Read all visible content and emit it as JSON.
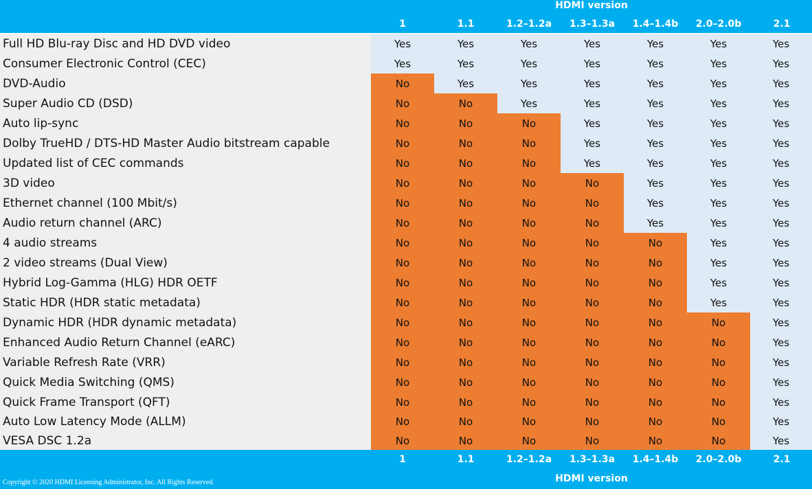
{
  "header": {
    "title": "HDMI version"
  },
  "footer": {
    "title": "HDMI version",
    "copyright": "Copyright © 2020 HDMI Licensing Administrator, Inc.  All Rights Reserved."
  },
  "versions": [
    "1",
    "1.1",
    "1.2–1.2a",
    "1.3–1.3a",
    "1.4–1.4b",
    "2.0–2.0b",
    "2.1"
  ],
  "colors": {
    "band": "#00aeef",
    "yes": "#deebf7",
    "no": "#ed7d31",
    "feature_bg": "#efefef"
  },
  "rows": [
    {
      "feature": "Full HD Blu-ray Disc and HD DVD video",
      "values": [
        "Yes",
        "Yes",
        "Yes",
        "Yes",
        "Yes",
        "Yes",
        "Yes"
      ]
    },
    {
      "feature": "Consumer Electronic Control (CEC)",
      "values": [
        "Yes",
        "Yes",
        "Yes",
        "Yes",
        "Yes",
        "Yes",
        "Yes"
      ]
    },
    {
      "feature": "DVD-Audio",
      "values": [
        "No",
        "Yes",
        "Yes",
        "Yes",
        "Yes",
        "Yes",
        "Yes"
      ]
    },
    {
      "feature": "Super Audio CD (DSD)",
      "values": [
        "No",
        "No",
        "Yes",
        "Yes",
        "Yes",
        "Yes",
        "Yes"
      ]
    },
    {
      "feature": "Auto lip-sync",
      "values": [
        "No",
        "No",
        "No",
        "Yes",
        "Yes",
        "Yes",
        "Yes"
      ]
    },
    {
      "feature": "Dolby TrueHD / DTS-HD Master Audio bitstream capable",
      "values": [
        "No",
        "No",
        "No",
        "Yes",
        "Yes",
        "Yes",
        "Yes"
      ]
    },
    {
      "feature": "Updated list of CEC commands",
      "values": [
        "No",
        "No",
        "No",
        "Yes",
        "Yes",
        "Yes",
        "Yes"
      ]
    },
    {
      "feature": "3D video",
      "values": [
        "No",
        "No",
        "No",
        "No",
        "Yes",
        "Yes",
        "Yes"
      ]
    },
    {
      "feature": "Ethernet channel (100 Mbit/s)",
      "values": [
        "No",
        "No",
        "No",
        "No",
        "Yes",
        "Yes",
        "Yes"
      ]
    },
    {
      "feature": "Audio return channel (ARC)",
      "values": [
        "No",
        "No",
        "No",
        "No",
        "Yes",
        "Yes",
        "Yes"
      ]
    },
    {
      "feature": "4 audio streams",
      "values": [
        "No",
        "No",
        "No",
        "No",
        "No",
        "Yes",
        "Yes"
      ]
    },
    {
      "feature": "2 video streams (Dual View)",
      "values": [
        "No",
        "No",
        "No",
        "No",
        "No",
        "Yes",
        "Yes"
      ]
    },
    {
      "feature": "Hybrid Log-Gamma (HLG) HDR OETF",
      "values": [
        "No",
        "No",
        "No",
        "No",
        "No",
        "Yes",
        "Yes"
      ]
    },
    {
      "feature": "Static HDR (HDR static metadata)",
      "values": [
        "No",
        "No",
        "No",
        "No",
        "No",
        "Yes",
        "Yes"
      ]
    },
    {
      "feature": "Dynamic HDR (HDR dynamic metadata)",
      "values": [
        "No",
        "No",
        "No",
        "No",
        "No",
        "No",
        "Yes"
      ]
    },
    {
      "feature": "Enhanced Audio Return Channel (eARC)",
      "values": [
        "No",
        "No",
        "No",
        "No",
        "No",
        "No",
        "Yes"
      ]
    },
    {
      "feature": "Variable Refresh Rate (VRR)",
      "values": [
        "No",
        "No",
        "No",
        "No",
        "No",
        "No",
        "Yes"
      ]
    },
    {
      "feature": "Quick Media Switching (QMS)",
      "values": [
        "No",
        "No",
        "No",
        "No",
        "No",
        "No",
        "Yes"
      ]
    },
    {
      "feature": "Quick Frame Transport (QFT)",
      "values": [
        "No",
        "No",
        "No",
        "No",
        "No",
        "No",
        "Yes"
      ]
    },
    {
      "feature": "Auto Low Latency Mode (ALLM)",
      "values": [
        "No",
        "No",
        "No",
        "No",
        "No",
        "No",
        "Yes"
      ]
    },
    {
      "feature": "VESA DSC 1.2a",
      "values": [
        "No",
        "No",
        "No",
        "No",
        "No",
        "No",
        "Yes"
      ]
    }
  ]
}
